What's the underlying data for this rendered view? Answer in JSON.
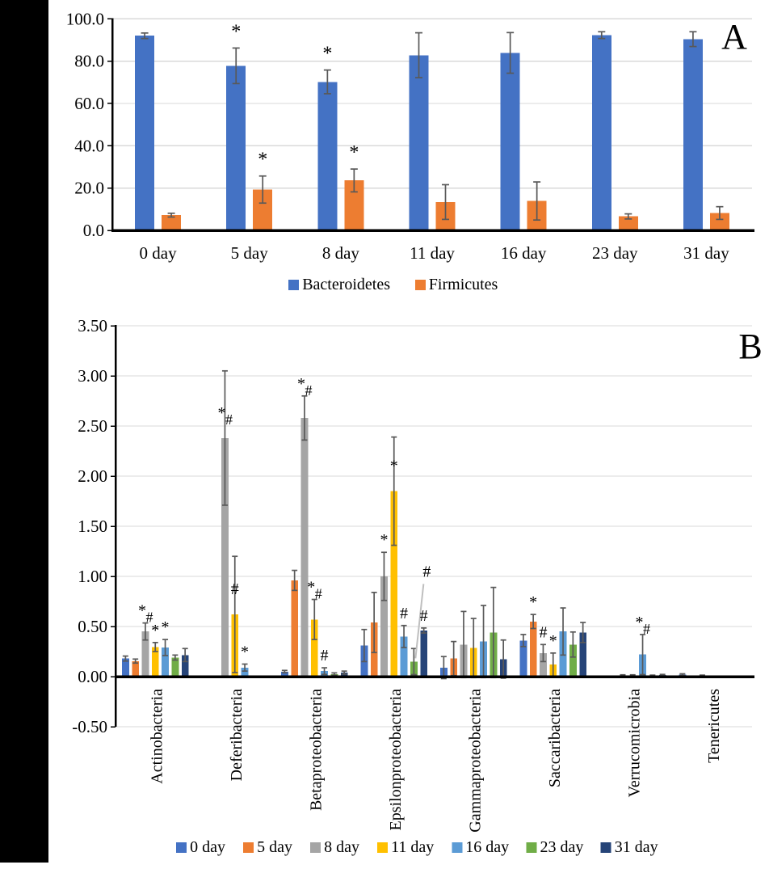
{
  "figure": {
    "background": "#FFFFFF",
    "sidebar_color": "#000000",
    "gridline_color": "#D9D9D9",
    "axis_color": "#000000",
    "error_bar_color": "#595959",
    "leader_line_color": "#BFBFBF"
  },
  "chart_data": [
    {
      "type": "bar",
      "panel_label": "A",
      "title": "",
      "xlabel": "",
      "ylabel": "",
      "ylim": [
        0,
        100
      ],
      "grid": true,
      "legend_position": "bottom",
      "yticks": [
        {
          "value": 0,
          "label": "0.0"
        },
        {
          "value": 20,
          "label": "20.0"
        },
        {
          "value": 40,
          "label": "40.0"
        },
        {
          "value": 60,
          "label": "60.0"
        },
        {
          "value": 80,
          "label": "80.0"
        },
        {
          "value": 100,
          "label": "100.0"
        }
      ],
      "categories": [
        "0 day",
        "5 day",
        "8 day",
        "11 day",
        "16 day",
        "23 day",
        "31 day"
      ],
      "series": [
        {
          "name": "Bacteroidetes",
          "color": "#4472C4",
          "values": [
            92.0,
            77.8,
            70.2,
            82.8,
            83.9,
            92.3,
            90.4
          ],
          "errors": [
            1.3,
            8.4,
            5.6,
            10.6,
            9.6,
            1.6,
            3.5
          ],
          "annotations": [
            "",
            "*",
            "*",
            "",
            "",
            "",
            ""
          ]
        },
        {
          "name": "Firmicutes",
          "color": "#ED7D31",
          "values": [
            7.2,
            19.3,
            23.6,
            13.4,
            13.9,
            6.6,
            8.2
          ],
          "errors": [
            0.9,
            6.4,
            5.4,
            8.2,
            9.0,
            1.2,
            3.0
          ],
          "annotations": [
            "",
            "*",
            "*",
            "",
            "",
            "",
            ""
          ]
        }
      ]
    },
    {
      "type": "bar",
      "panel_label": "B",
      "title": "",
      "xlabel": "",
      "ylabel": "",
      "ylim": [
        -0.5,
        3.5
      ],
      "grid": true,
      "legend_position": "bottom",
      "x_labels_rotated": true,
      "yticks": [
        {
          "value": -0.5,
          "label": "-0.50"
        },
        {
          "value": 0,
          "label": "0.00"
        },
        {
          "value": 0.5,
          "label": "0.50"
        },
        {
          "value": 1.0,
          "label": "1.00"
        },
        {
          "value": 1.5,
          "label": "1.50"
        },
        {
          "value": 2.0,
          "label": "2.00"
        },
        {
          "value": 2.5,
          "label": "2.50"
        },
        {
          "value": 3.0,
          "label": "3.00"
        },
        {
          "value": 3.5,
          "label": "3.50"
        }
      ],
      "categories": [
        "Actinobacteria",
        "Deferibacteria",
        "Betaproteobacteria",
        "Epsilonproteobacteria",
        "Gammaproteobacteria",
        "Saccaribacteria",
        "Verrucomicrobia",
        "Tenericutes"
      ],
      "series": [
        {
          "name": "0 day",
          "color": "#4472C4",
          "values": [
            0.18,
            0.006,
            0.05,
            0.31,
            0.09,
            0.36,
            0.008,
            0.02
          ],
          "errors": [
            0.025,
            0.003,
            0.012,
            0.16,
            0.11,
            0.06,
            0.004,
            0.008
          ],
          "annotations": [
            "",
            "",
            "",
            "",
            "",
            "",
            "",
            ""
          ]
        },
        {
          "name": "5 day",
          "color": "#ED7D31",
          "values": [
            0.155,
            0.006,
            0.96,
            0.54,
            0.18,
            0.55,
            0.008,
            0.008
          ],
          "errors": [
            0.02,
            0.003,
            0.1,
            0.3,
            0.17,
            0.07,
            0.004,
            0.004
          ],
          "annotations": [
            "",
            "",
            "",
            "",
            "",
            "*",
            "",
            ""
          ]
        },
        {
          "name": "8 day",
          "color": "#A5A5A5",
          "values": [
            0.45,
            2.38,
            2.58,
            1.0,
            0.32,
            0.235,
            0.012,
            0.01
          ],
          "errors": [
            0.085,
            0.67,
            0.22,
            0.24,
            0.33,
            0.085,
            0.006,
            0.005
          ],
          "annotations": [
            "*#",
            "*#",
            "*#",
            "*",
            "",
            "#",
            "",
            ""
          ]
        },
        {
          "name": "11 day",
          "color": "#FFC000",
          "values": [
            0.295,
            0.62,
            0.57,
            1.85,
            0.285,
            0.12,
            0.012,
            -0.008
          ],
          "errors": [
            0.045,
            0.58,
            0.2,
            0.54,
            0.295,
            0.115,
            0.006,
            0.004
          ],
          "annotations": [
            "*",
            "#",
            "*#",
            "*",
            "",
            "*",
            "",
            ""
          ]
        },
        {
          "name": "16 day",
          "color": "#5B9BD5",
          "values": [
            0.29,
            0.09,
            0.055,
            0.4,
            0.35,
            0.45,
            0.22,
            0.006
          ],
          "errors": [
            0.08,
            0.035,
            0.033,
            0.11,
            0.36,
            0.235,
            0.2,
            0.003
          ],
          "annotations": [
            "*",
            "*",
            "#",
            "#",
            "",
            "",
            "*#",
            ""
          ]
        },
        {
          "name": "23 day",
          "color": "#70AD47",
          "values": [
            0.19,
            0.006,
            0.025,
            0.15,
            0.44,
            0.32,
            0.01,
            0.006
          ],
          "errors": [
            0.025,
            0.003,
            0.012,
            0.13,
            0.45,
            0.125,
            0.005,
            0.003
          ],
          "annotations": [
            "",
            "",
            "",
            "#",
            "",
            "",
            "",
            ""
          ]
        },
        {
          "name": "31 day",
          "color": "#264478",
          "values": [
            0.215,
            0.006,
            0.04,
            0.46,
            0.175,
            0.44,
            0.015,
            0.006
          ],
          "errors": [
            0.065,
            0.003,
            0.015,
            0.025,
            0.19,
            0.1,
            0.007,
            0.003
          ],
          "annotations": [
            "",
            "",
            "",
            "#",
            "",
            "",
            "",
            ""
          ]
        }
      ],
      "leader_note": {
        "category": 3,
        "series": 5,
        "text": "#"
      }
    }
  ]
}
